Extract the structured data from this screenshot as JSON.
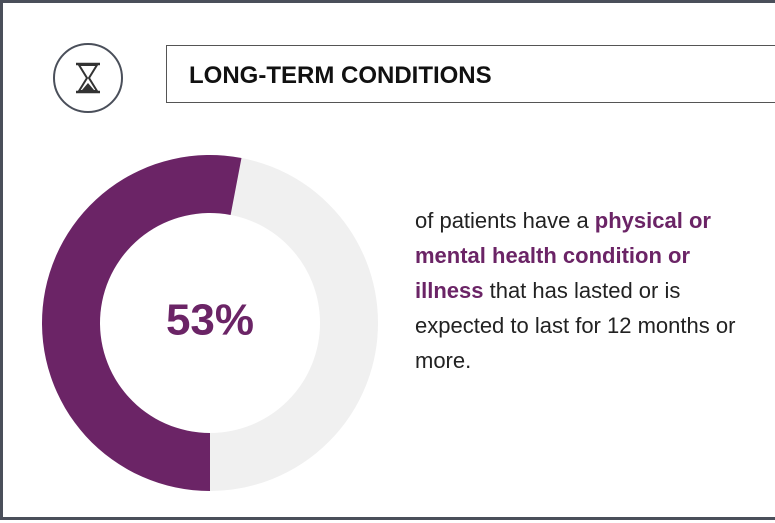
{
  "chart_data": {
    "type": "donut",
    "title": "LONG-TERM CONDITIONS",
    "values": [
      53
    ],
    "value_labels": [
      "53%"
    ],
    "color": "#6b2466",
    "track_color": "#f0f0f0",
    "description": [
      {
        "text": "of patients have a ",
        "bold": false
      },
      {
        "text": "physical or mental health condition or illness",
        "bold": true
      },
      {
        "text": " that has lasted or is expected to last for 12 months or more.",
        "bold": false
      }
    ]
  }
}
